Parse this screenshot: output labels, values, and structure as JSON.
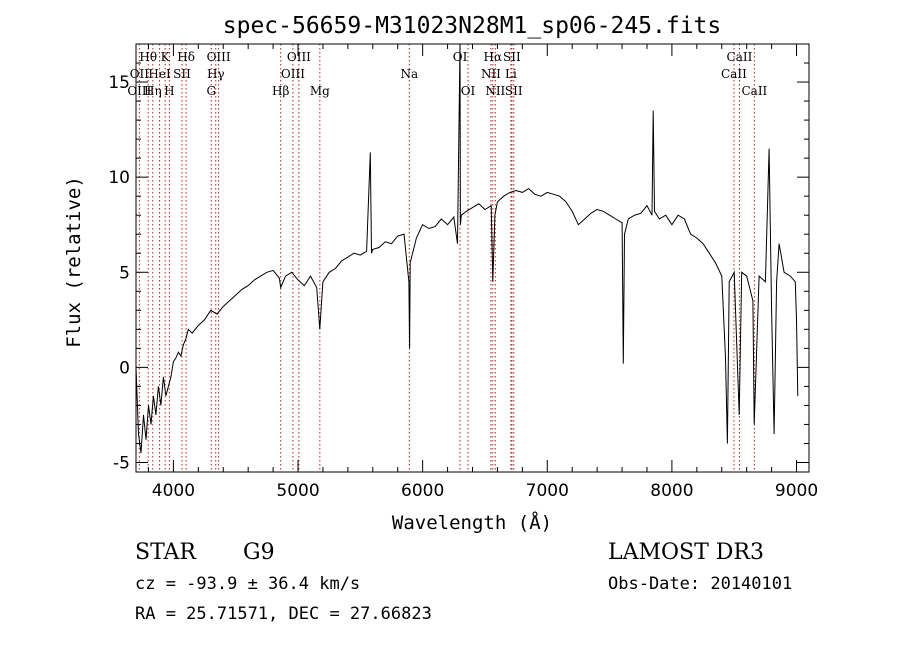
{
  "chart_data": {
    "type": "line",
    "title": "spec-56659-M31023N28M1_sp06-245.fits",
    "xlabel": "Wavelength (Å)",
    "ylabel": "Flux (relative)",
    "xlim": [
      3700,
      9100
    ],
    "ylim": [
      -5.5,
      17
    ],
    "x_ticks": [
      4000,
      5000,
      6000,
      7000,
      8000,
      9000
    ],
    "x_tick_labels": [
      "4000",
      "5000",
      "6000",
      "7000",
      "8000",
      "9000"
    ],
    "y_ticks": [
      -5,
      0,
      5,
      10,
      15
    ],
    "y_tick_labels": [
      "-5",
      "0",
      "5",
      "10",
      "15"
    ],
    "grid": false,
    "series": [
      {
        "x": [
          3700,
          3720,
          3740,
          3760,
          3780,
          3800,
          3820,
          3840,
          3860,
          3880,
          3900,
          3920,
          3940,
          3960,
          3980,
          4000,
          4020,
          4040,
          4060,
          4080,
          4100,
          4120,
          4150,
          4200,
          4250,
          4300,
          4350,
          4400,
          4450,
          4500,
          4550,
          4600,
          4650,
          4700,
          4750,
          4800,
          4850,
          4861,
          4900,
          4950,
          5000,
          5050,
          5100,
          5150,
          5175,
          5200,
          5250,
          5300,
          5350,
          5400,
          5450,
          5500,
          5550,
          5580,
          5590,
          5600,
          5650,
          5700,
          5750,
          5800,
          5850,
          5890,
          5895,
          5900,
          5950,
          6000,
          6050,
          6100,
          6150,
          6200,
          6250,
          6280,
          6300,
          6303,
          6310,
          6350,
          6400,
          6450,
          6500,
          6550,
          6563,
          6580,
          6600,
          6650,
          6700,
          6750,
          6800,
          6850,
          6900,
          6950,
          7000,
          7050,
          7100,
          7150,
          7200,
          7250,
          7300,
          7350,
          7400,
          7450,
          7500,
          7550,
          7600,
          7610,
          7620,
          7650,
          7700,
          7750,
          7800,
          7840,
          7850,
          7860,
          7900,
          7950,
          8000,
          8050,
          8100,
          8150,
          8200,
          8250,
          8300,
          8350,
          8400,
          8430,
          8445,
          8460,
          8500,
          8540,
          8560,
          8600,
          8650,
          8660,
          8700,
          8750,
          8780,
          8800,
          8820,
          8840,
          8860,
          8900,
          8950,
          8990,
          9000,
          9010
        ],
        "y": [
          0,
          -3.5,
          -4.5,
          -2.5,
          -3.8,
          -2,
          -3,
          -1.5,
          -2.5,
          -1,
          -2,
          -0.5,
          -1.5,
          -1,
          -0.5,
          0.3,
          0.5,
          0.8,
          0.6,
          1.2,
          1.5,
          2,
          1.8,
          2.2,
          2.5,
          3,
          2.8,
          3.2,
          3.5,
          3.8,
          4.1,
          4.3,
          4.6,
          4.8,
          5.0,
          5.1,
          4.7,
          4.2,
          4.8,
          5.0,
          4.6,
          4.3,
          4.8,
          4.2,
          2.0,
          4.5,
          5.0,
          5.2,
          5.6,
          5.8,
          6.0,
          5.9,
          6.1,
          11.3,
          6.0,
          6.2,
          6.3,
          6.6,
          6.5,
          6.9,
          7.0,
          4.5,
          1.0,
          5.5,
          6.8,
          7.5,
          7.3,
          7.4,
          7.8,
          7.5,
          7.9,
          6.5,
          17.5,
          7.5,
          8.0,
          8.2,
          8.4,
          8.6,
          8.3,
          8.5,
          4.5,
          8.0,
          8.7,
          9.0,
          9.2,
          9.3,
          9.2,
          9.4,
          9.1,
          9.0,
          9.2,
          9.1,
          9.0,
          8.7,
          8.2,
          7.5,
          7.8,
          8.1,
          8.3,
          8.2,
          8.0,
          7.8,
          7.6,
          0.2,
          7.0,
          7.8,
          8.0,
          8.1,
          8.5,
          8.0,
          13.5,
          8.2,
          7.8,
          8.0,
          7.5,
          8.0,
          7.8,
          7.0,
          6.8,
          6.5,
          6.0,
          5.5,
          4.8,
          0.5,
          -4,
          4.5,
          5.0,
          -2.5,
          5.0,
          4.8,
          3.5,
          -3,
          4.8,
          4.5,
          11.5,
          3.0,
          -3.5,
          4.5,
          6.5,
          5.0,
          4.8,
          4.5,
          2.5,
          -1.5
        ]
      }
    ],
    "annotations": [
      {
        "text": "Hθ",
        "x": 3798,
        "row": 1
      },
      {
        "text": "OII",
        "x": 3727,
        "row": 2
      },
      {
        "text": "OIII",
        "x": 3727,
        "row": 3
      },
      {
        "text": "K",
        "x": 3934,
        "row": 1
      },
      {
        "text": "HeI",
        "x": 3889,
        "row": 2
      },
      {
        "text": "Hη",
        "x": 3835,
        "row": 3
      },
      {
        "text": "SII",
        "x": 4069,
        "row": 2
      },
      {
        "text": "H",
        "x": 3968,
        "row": 3
      },
      {
        "text": "Hδ",
        "x": 4102,
        "row": 1
      },
      {
        "text": "OIII",
        "x": 4363,
        "row": 1
      },
      {
        "text": "Hγ",
        "x": 4340,
        "row": 2
      },
      {
        "text": "G",
        "x": 4304,
        "row": 3
      },
      {
        "text": "OIII",
        "x": 5007,
        "row": 1
      },
      {
        "text": "OIII",
        "x": 4959,
        "row": 2
      },
      {
        "text": "Hβ",
        "x": 4861,
        "row": 3
      },
      {
        "text": "Mg",
        "x": 5175,
        "row": 3
      },
      {
        "text": "Na",
        "x": 5893,
        "row": 2
      },
      {
        "text": "OI",
        "x": 6300,
        "row": 1
      },
      {
        "text": "OI",
        "x": 6364,
        "row": 3
      },
      {
        "text": "Hα",
        "x": 6563,
        "row": 1
      },
      {
        "text": "SII",
        "x": 6716,
        "row": 1
      },
      {
        "text": "NII",
        "x": 6548,
        "row": 2
      },
      {
        "text": "Li",
        "x": 6708,
        "row": 2
      },
      {
        "text": "NII",
        "x": 6583,
        "row": 3
      },
      {
        "text": "SII",
        "x": 6731,
        "row": 3
      },
      {
        "text": "CaII",
        "x": 8542,
        "row": 1
      },
      {
        "text": "CaII",
        "x": 8498,
        "row": 2
      },
      {
        "text": "CaII",
        "x": 8662,
        "row": 3
      }
    ],
    "line_marks": [
      3727,
      3798,
      3835,
      3889,
      3934,
      3968,
      4069,
      4102,
      4304,
      4340,
      4363,
      4861,
      4959,
      5007,
      5175,
      5893,
      6300,
      6364,
      6548,
      6563,
      6583,
      6708,
      6716,
      6731,
      8498,
      8542,
      8662
    ]
  },
  "info": {
    "class_label": "STAR",
    "subclass_label": "G9",
    "survey": "LAMOST DR3",
    "cz_text": "cz = -93.9 ± 36.4 km/s",
    "obs_date_text": "Obs-Date: 20140101",
    "radec_text": "RA =  25.71571, DEC =  27.66823"
  },
  "colors": {
    "line_mark": "#b22222",
    "spectrum": "#000000"
  }
}
